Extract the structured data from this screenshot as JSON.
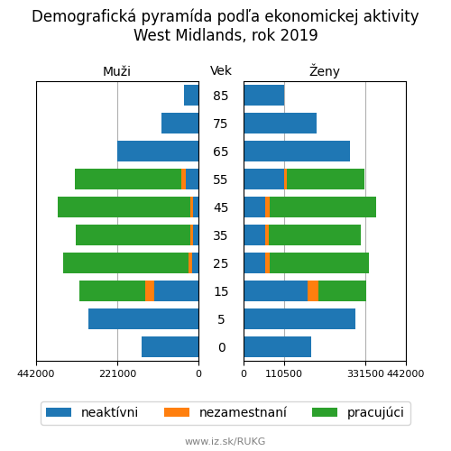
{
  "title": "Demografická pyramída podľa ekonomickej aktivity\nWest Midlands, rok 2019",
  "annotations": [
    "www.iz.sk/RUKG"
  ],
  "legend": "lower center",
  "chart_data": [
    {
      "type": "bar",
      "orientation": "horizontal",
      "stacked": true,
      "xlabel": "Muži",
      "ylabel": "Vek",
      "categories": [
        "0",
        "5",
        "15",
        "25",
        "35",
        "45",
        "55",
        "65",
        "75",
        "85"
      ],
      "series": [
        {
          "name": "neaktívni",
          "values": [
            155000,
            300000,
            120000,
            18000,
            15000,
            15000,
            35000,
            220000,
            100000,
            40000
          ]
        },
        {
          "name": "nezamestnaní",
          "values": [
            0,
            0,
            25000,
            10000,
            8000,
            8000,
            12000,
            0,
            0,
            0
          ]
        },
        {
          "name": "pracujúci",
          "values": [
            0,
            0,
            180000,
            340000,
            310000,
            360000,
            290000,
            0,
            0,
            0
          ]
        }
      ],
      "xlim": [
        442000,
        0
      ],
      "xticks": [
        442000,
        221000,
        0
      ],
      "grid": "x"
    },
    {
      "type": "bar",
      "orientation": "horizontal",
      "stacked": true,
      "xlabel": "Ženy",
      "categories": [
        "0",
        "5",
        "15",
        "25",
        "35",
        "45",
        "55",
        "65",
        "75",
        "85"
      ],
      "tick_labels": "x",
      "series": [
        {
          "name": "neaktívni",
          "values": [
            185000,
            305000,
            175000,
            60000,
            60000,
            60000,
            110000,
            290000,
            200000,
            110000
          ]
        },
        {
          "name": "nezamestnaní",
          "values": [
            0,
            0,
            28000,
            12000,
            8000,
            10000,
            8000,
            0,
            0,
            0
          ]
        },
        {
          "name": "pracujúci",
          "values": [
            0,
            0,
            130000,
            270000,
            250000,
            290000,
            210000,
            0,
            0,
            0
          ]
        }
      ],
      "xlim": [
        0,
        442000
      ],
      "xticks": [
        0,
        110500,
        331500,
        442000
      ],
      "grid": "x"
    }
  ]
}
